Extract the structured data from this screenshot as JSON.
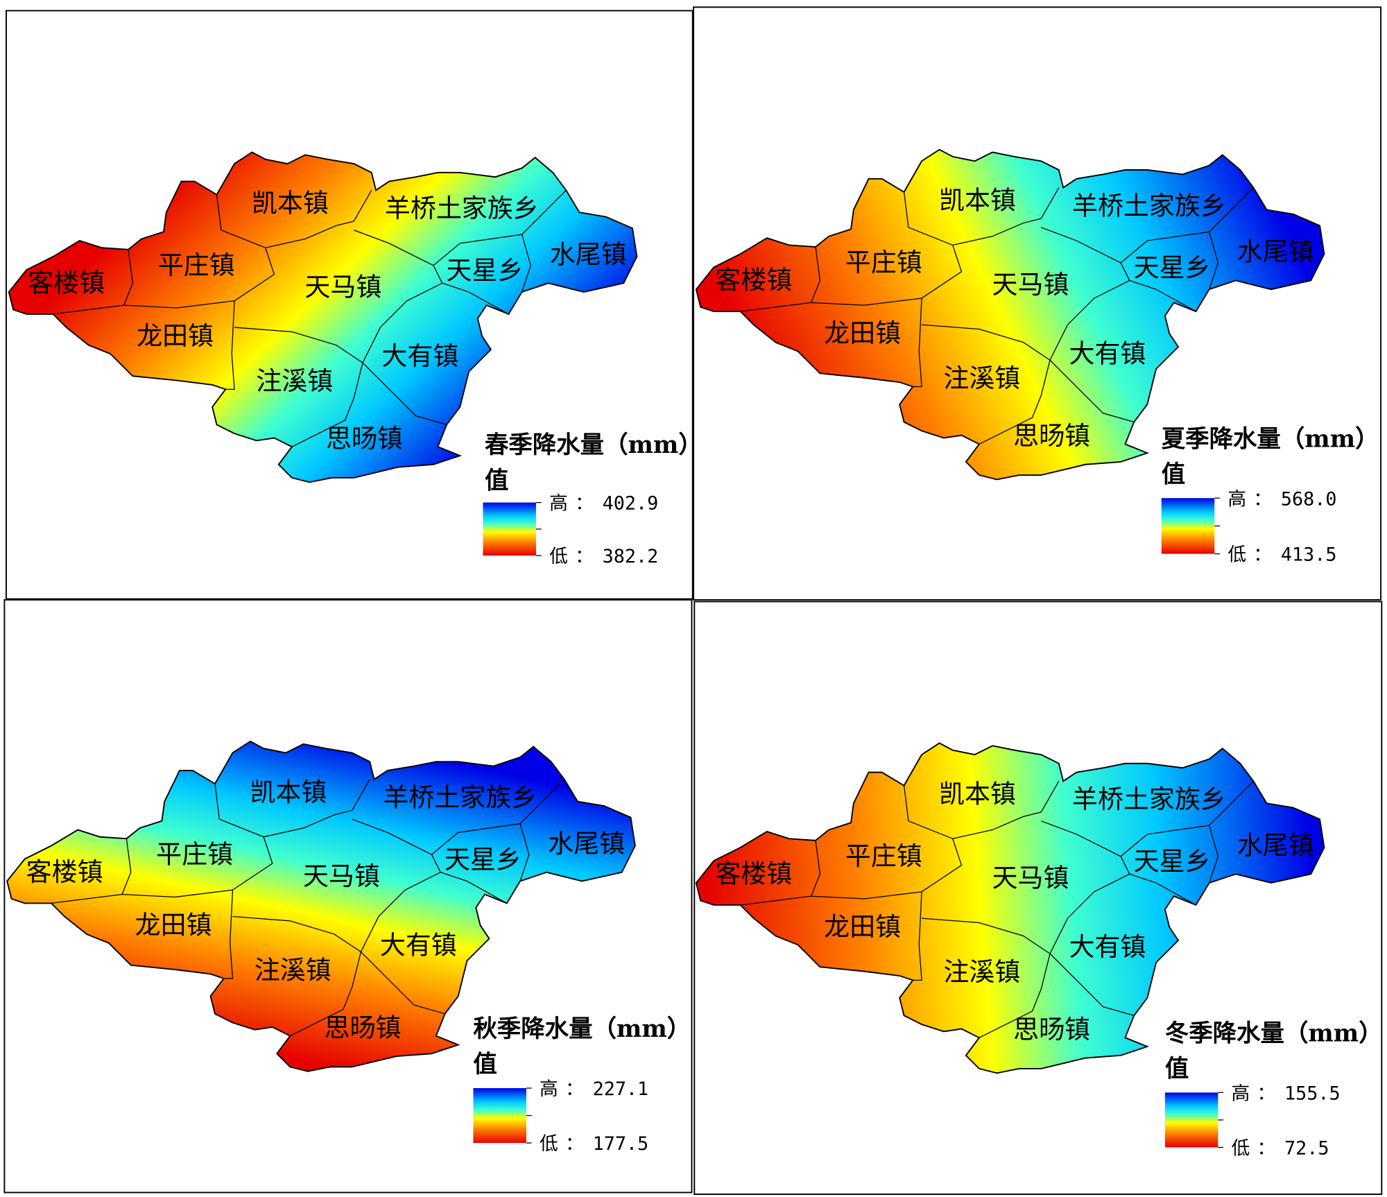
{
  "towns": [
    "客楼镇",
    "平庄镇",
    "凯本镇",
    "羊桥土家族乡",
    "水尾镇",
    "天星乡",
    "天马镇",
    "龙田镇",
    "大有镇",
    "注溪镇",
    "思旸镇"
  ],
  "panels": [
    {
      "title": "春季降水量（mm）",
      "value_heading": "值",
      "high_label": "高",
      "low_label": "低",
      "separator": "：",
      "high": "402.9",
      "low": "382.2"
    },
    {
      "title": "夏季降水量（mm）",
      "value_heading": "值",
      "high_label": "高",
      "low_label": "低",
      "separator": "：",
      "high": "568.0",
      "low": "413.5"
    },
    {
      "title": "秋季降水量（mm）",
      "value_heading": "值",
      "high_label": "高",
      "low_label": "低",
      "separator": "：",
      "high": "227.1",
      "low": "177.5"
    },
    {
      "title": "冬季降水量（mm）",
      "value_heading": "值",
      "high_label": "高",
      "low_label": "低",
      "separator": "：",
      "high": "155.5",
      "low": "72.5"
    }
  ]
}
